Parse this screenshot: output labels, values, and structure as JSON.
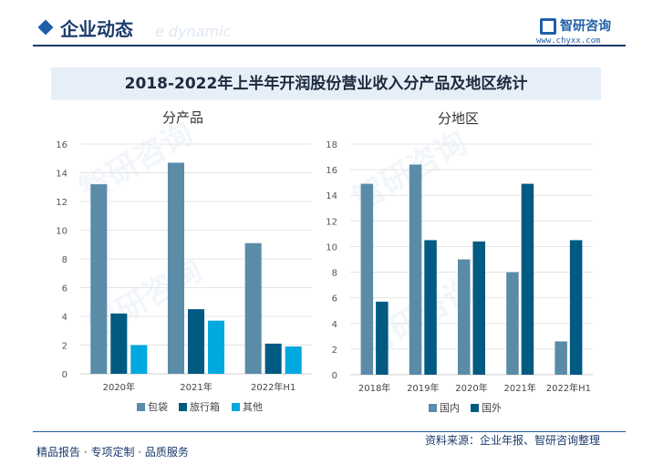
{
  "header": {
    "title": "企业动态",
    "subtitle": "e dynamic",
    "logo_text": "智研咨询",
    "logo_url": "www.chyxx.com"
  },
  "main_title": "2018-2022年上半年开润股份营业收入分产品及地区统计",
  "footer": {
    "left": "精品报告 · 专项定制 · 品质服务",
    "right": "资料来源：企业年报、智研咨询整理"
  },
  "colors": {
    "accent": "#1f5fa8",
    "series_a": "#5a8ca8",
    "series_b": "#005a82",
    "series_c": "#00a8e0"
  },
  "chart_data": [
    {
      "type": "bar",
      "title": "分产品",
      "categories": [
        "2020年",
        "2021年",
        "2022年H1"
      ],
      "series": [
        {
          "name": "包袋",
          "values": [
            13.2,
            14.7,
            9.1
          ]
        },
        {
          "name": "旅行箱",
          "values": [
            4.2,
            4.5,
            2.1
          ]
        },
        {
          "name": "其他",
          "values": [
            2.0,
            3.7,
            1.9
          ]
        }
      ],
      "ylim": [
        0,
        16
      ],
      "yticks": [
        0,
        2,
        4,
        6,
        8,
        10,
        12,
        14,
        16
      ],
      "grid": true,
      "legend": "bottom"
    },
    {
      "type": "bar",
      "title": "分地区",
      "categories": [
        "2018年",
        "2019年",
        "2020年",
        "2021年",
        "2022年H1"
      ],
      "series": [
        {
          "name": "国内",
          "values": [
            14.9,
            16.4,
            9.0,
            8.0,
            2.6
          ]
        },
        {
          "name": "国外",
          "values": [
            5.7,
            10.5,
            10.4,
            14.9,
            10.5
          ]
        }
      ],
      "ylim": [
        0,
        18
      ],
      "yticks": [
        0,
        2,
        4,
        6,
        8,
        10,
        12,
        14,
        16,
        18
      ],
      "grid": true,
      "legend": "bottom"
    }
  ]
}
